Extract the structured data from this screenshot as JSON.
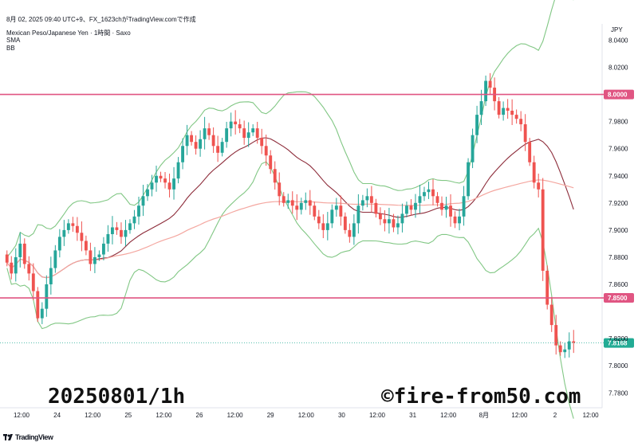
{
  "header": {
    "line1": "8月 02, 2025 09:40 UTC+9、FX_1623chがTradingView.comで作成",
    "line2": "Mexican Peso/Japanese Yen · 1時間 · Saxo",
    "line3": "SMA",
    "line4": "BB"
  },
  "currency": "JPY",
  "footer": {
    "brand": "TradingView",
    "icon": "tradingview-logo-icon"
  },
  "overlay": {
    "left_text": "20250801/1h",
    "right_text": "©fire-from50.com"
  },
  "colors": {
    "up": "#26a69a",
    "down": "#ef5350",
    "bb_band": "#81c784",
    "bb_mid": "#8d2c3a",
    "sma": "#f4a7a0",
    "hline": "#e05582",
    "last": "#22ab94"
  },
  "chart_data": {
    "type": "candlestick",
    "symbol": "Mexican Peso/Japanese Yen",
    "interval": "1時間",
    "broker": "Saxo",
    "x_ticks": [
      "12:00",
      "24",
      "12:00",
      "25",
      "12:00",
      "26",
      "12:00",
      "29",
      "12:00",
      "30",
      "12:00",
      "31",
      "12:00",
      "8月",
      "12:00",
      "2",
      "12:00"
    ],
    "y_ticks": [
      "8.0400",
      "8.0200",
      "7.9800",
      "7.9600",
      "7.9400",
      "7.9200",
      "7.9000",
      "7.8800",
      "7.8600",
      "7.8200",
      "7.8000",
      "7.7800"
    ],
    "ylim": [
      7.769,
      8.052
    ],
    "horizontal_lines": [
      {
        "price": 8.0,
        "label": "8.0000"
      },
      {
        "price": 7.85,
        "label": "7.8500"
      }
    ],
    "last_price": {
      "price": 7.8168,
      "label": "7.8168"
    },
    "close": [
      7.876,
      7.868,
      7.88,
      7.89,
      7.875,
      7.868,
      7.855,
      7.835,
      7.842,
      7.86,
      7.872,
      7.885,
      7.895,
      7.9,
      7.905,
      7.903,
      7.898,
      7.892,
      7.885,
      7.875,
      7.88,
      7.882,
      7.89,
      7.897,
      7.902,
      7.9,
      7.895,
      7.9,
      7.905,
      7.91,
      7.918,
      7.925,
      7.93,
      7.935,
      7.94,
      7.938,
      7.935,
      7.93,
      7.938,
      7.95,
      7.962,
      7.97,
      7.965,
      7.96,
      7.967,
      7.975,
      7.97,
      7.962,
      7.957,
      7.965,
      7.975,
      7.98,
      7.978,
      7.975,
      7.968,
      7.972,
      7.975,
      7.968,
      7.962,
      7.955,
      7.945,
      7.935,
      7.925,
      7.92,
      7.922,
      7.918,
      7.915,
      7.92,
      7.922,
      7.918,
      7.91,
      7.905,
      7.9,
      7.905,
      7.915,
      7.918,
      7.91,
      7.9,
      7.895,
      7.905,
      7.918,
      7.922,
      7.925,
      7.92,
      7.912,
      7.908,
      7.905,
      7.908,
      7.902,
      7.905,
      7.912,
      7.918,
      7.915,
      7.92,
      7.925,
      7.928,
      7.93,
      7.925,
      7.92,
      7.915,
      7.918,
      7.91,
      7.905,
      7.91,
      7.925,
      7.95,
      7.97,
      7.985,
      7.995,
      8.01,
      8.005,
      7.995,
      7.985,
      7.99,
      7.988,
      7.985,
      7.982,
      7.978,
      7.965,
      7.95,
      7.935,
      7.93,
      7.87,
      7.845,
      7.83,
      7.815,
      7.81,
      7.812,
      7.818,
      7.817
    ]
  }
}
